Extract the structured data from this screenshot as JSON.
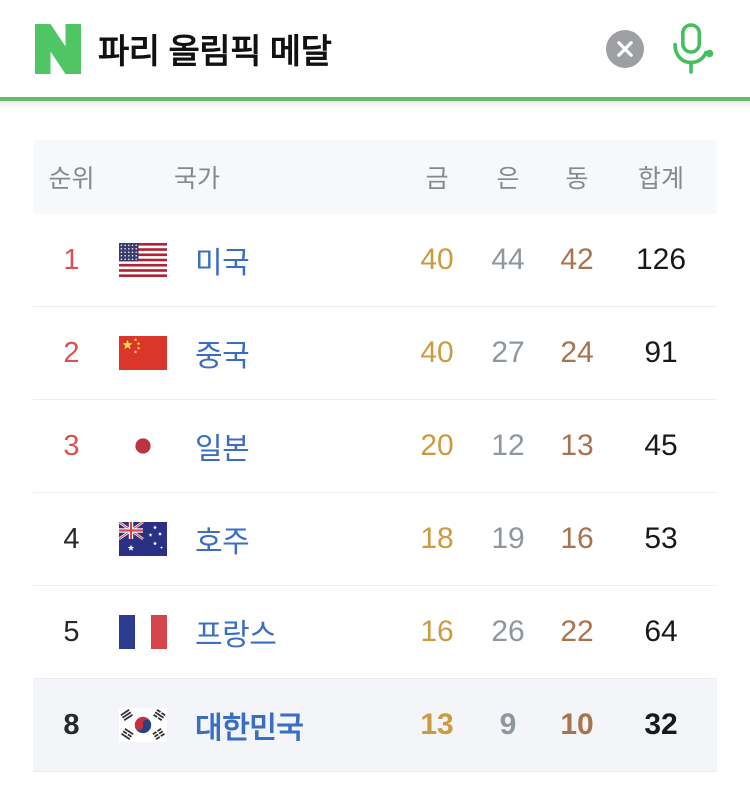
{
  "header": {
    "search_query": "파리 올림픽 메달",
    "logo": "N",
    "icons": {
      "logo": "naver-logo",
      "clear": "clear-icon",
      "mic": "mic-icon"
    }
  },
  "table": {
    "columns": {
      "rank": "순위",
      "country": "국가",
      "gold": "금",
      "silver": "은",
      "bronze": "동",
      "total": "합계"
    },
    "rows": [
      {
        "rank": "1",
        "rank_style": "red",
        "flag": "us-flag",
        "country": "미국",
        "gold": "40",
        "silver": "44",
        "bronze": "42",
        "total": "126",
        "highlight": false
      },
      {
        "rank": "2",
        "rank_style": "red",
        "flag": "china-flag",
        "country": "중국",
        "gold": "40",
        "silver": "27",
        "bronze": "24",
        "total": "91",
        "highlight": false
      },
      {
        "rank": "3",
        "rank_style": "red",
        "flag": "japan-flag",
        "country": "일본",
        "gold": "20",
        "silver": "12",
        "bronze": "13",
        "total": "45",
        "highlight": false
      },
      {
        "rank": "4",
        "rank_style": "dark",
        "flag": "australia-flag",
        "country": "호주",
        "gold": "18",
        "silver": "19",
        "bronze": "16",
        "total": "53",
        "highlight": false
      },
      {
        "rank": "5",
        "rank_style": "dark",
        "flag": "france-flag",
        "country": "프랑스",
        "gold": "16",
        "silver": "26",
        "bronze": "22",
        "total": "64",
        "highlight": false
      },
      {
        "rank": "8",
        "rank_style": "dark",
        "flag": "korea-flag",
        "country": "대한민국",
        "gold": "13",
        "silver": "9",
        "bronze": "10",
        "total": "32",
        "highlight": true
      }
    ]
  },
  "colors": {
    "naver_green": "#4fc564",
    "rule_green": "#68b96d",
    "rank_red": "#dd5150",
    "country_blue": "#3a6dc4",
    "gold": "#cc9b3f",
    "silver": "#8e969e",
    "bronze": "#a8734d",
    "total_text": "#17191b",
    "header_text": "#85888c",
    "header_bg": "#f7f8f9",
    "highlight_row_bg": "#f3f5f9",
    "clear_btn_gray": "#9d9fa2"
  }
}
